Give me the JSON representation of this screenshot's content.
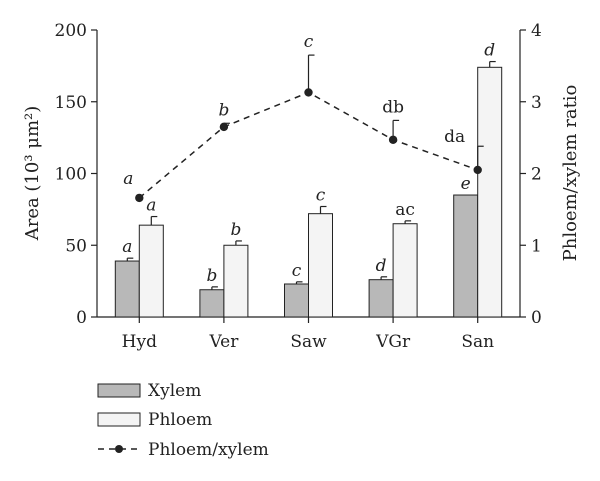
{
  "chart_data": {
    "type": "bar",
    "categories": [
      "Hyd",
      "Ver",
      "Saw",
      "VGr",
      "San"
    ],
    "left_axis": {
      "ylabel": "Area (10³ μm²)",
      "ylim": [
        0,
        200
      ],
      "ticks": [
        "0",
        "50",
        "100",
        "150",
        "200"
      ]
    },
    "right_axis": {
      "ylabel": "Phloem/xylem ratio",
      "ylim": [
        0,
        4
      ],
      "ticks": [
        "0",
        "1",
        "2",
        "3",
        "4"
      ]
    },
    "series": [
      {
        "name": "Xylem",
        "kind": "bar",
        "axis": "left",
        "color": "#b8b8b8",
        "values": [
          39,
          19,
          23,
          26,
          85
        ],
        "errors": [
          2,
          2,
          1.5,
          2,
          0
        ],
        "labels": [
          "a",
          "b",
          "c",
          "d",
          "e"
        ],
        "labels_italic": [
          true,
          true,
          true,
          true,
          true
        ]
      },
      {
        "name": "Phloem",
        "kind": "bar",
        "axis": "left",
        "color": "#f4f4f4",
        "values": [
          64,
          50,
          72,
          65,
          174
        ],
        "errors": [
          6,
          3,
          5,
          2,
          4
        ],
        "labels": [
          "a",
          "b",
          "c",
          "ac",
          "d"
        ],
        "labels_italic": [
          true,
          true,
          true,
          false,
          true
        ]
      },
      {
        "name": "Phloem/xylem",
        "kind": "line",
        "axis": "right",
        "style": "dashed",
        "color": "#222222",
        "values": [
          1.66,
          2.65,
          3.13,
          2.47,
          2.05
        ],
        "errors": [
          0,
          0.05,
          0.52,
          0.27,
          0.33
        ],
        "labels": [
          "a",
          "b",
          "c",
          "db",
          "da"
        ],
        "labels_italic": [
          true,
          true,
          true,
          false,
          false
        ]
      }
    ],
    "legend": {
      "placement": "bottom-left",
      "entries": [
        "Xylem",
        "Phloem",
        "Phloem/xylem"
      ]
    },
    "grid": false
  }
}
